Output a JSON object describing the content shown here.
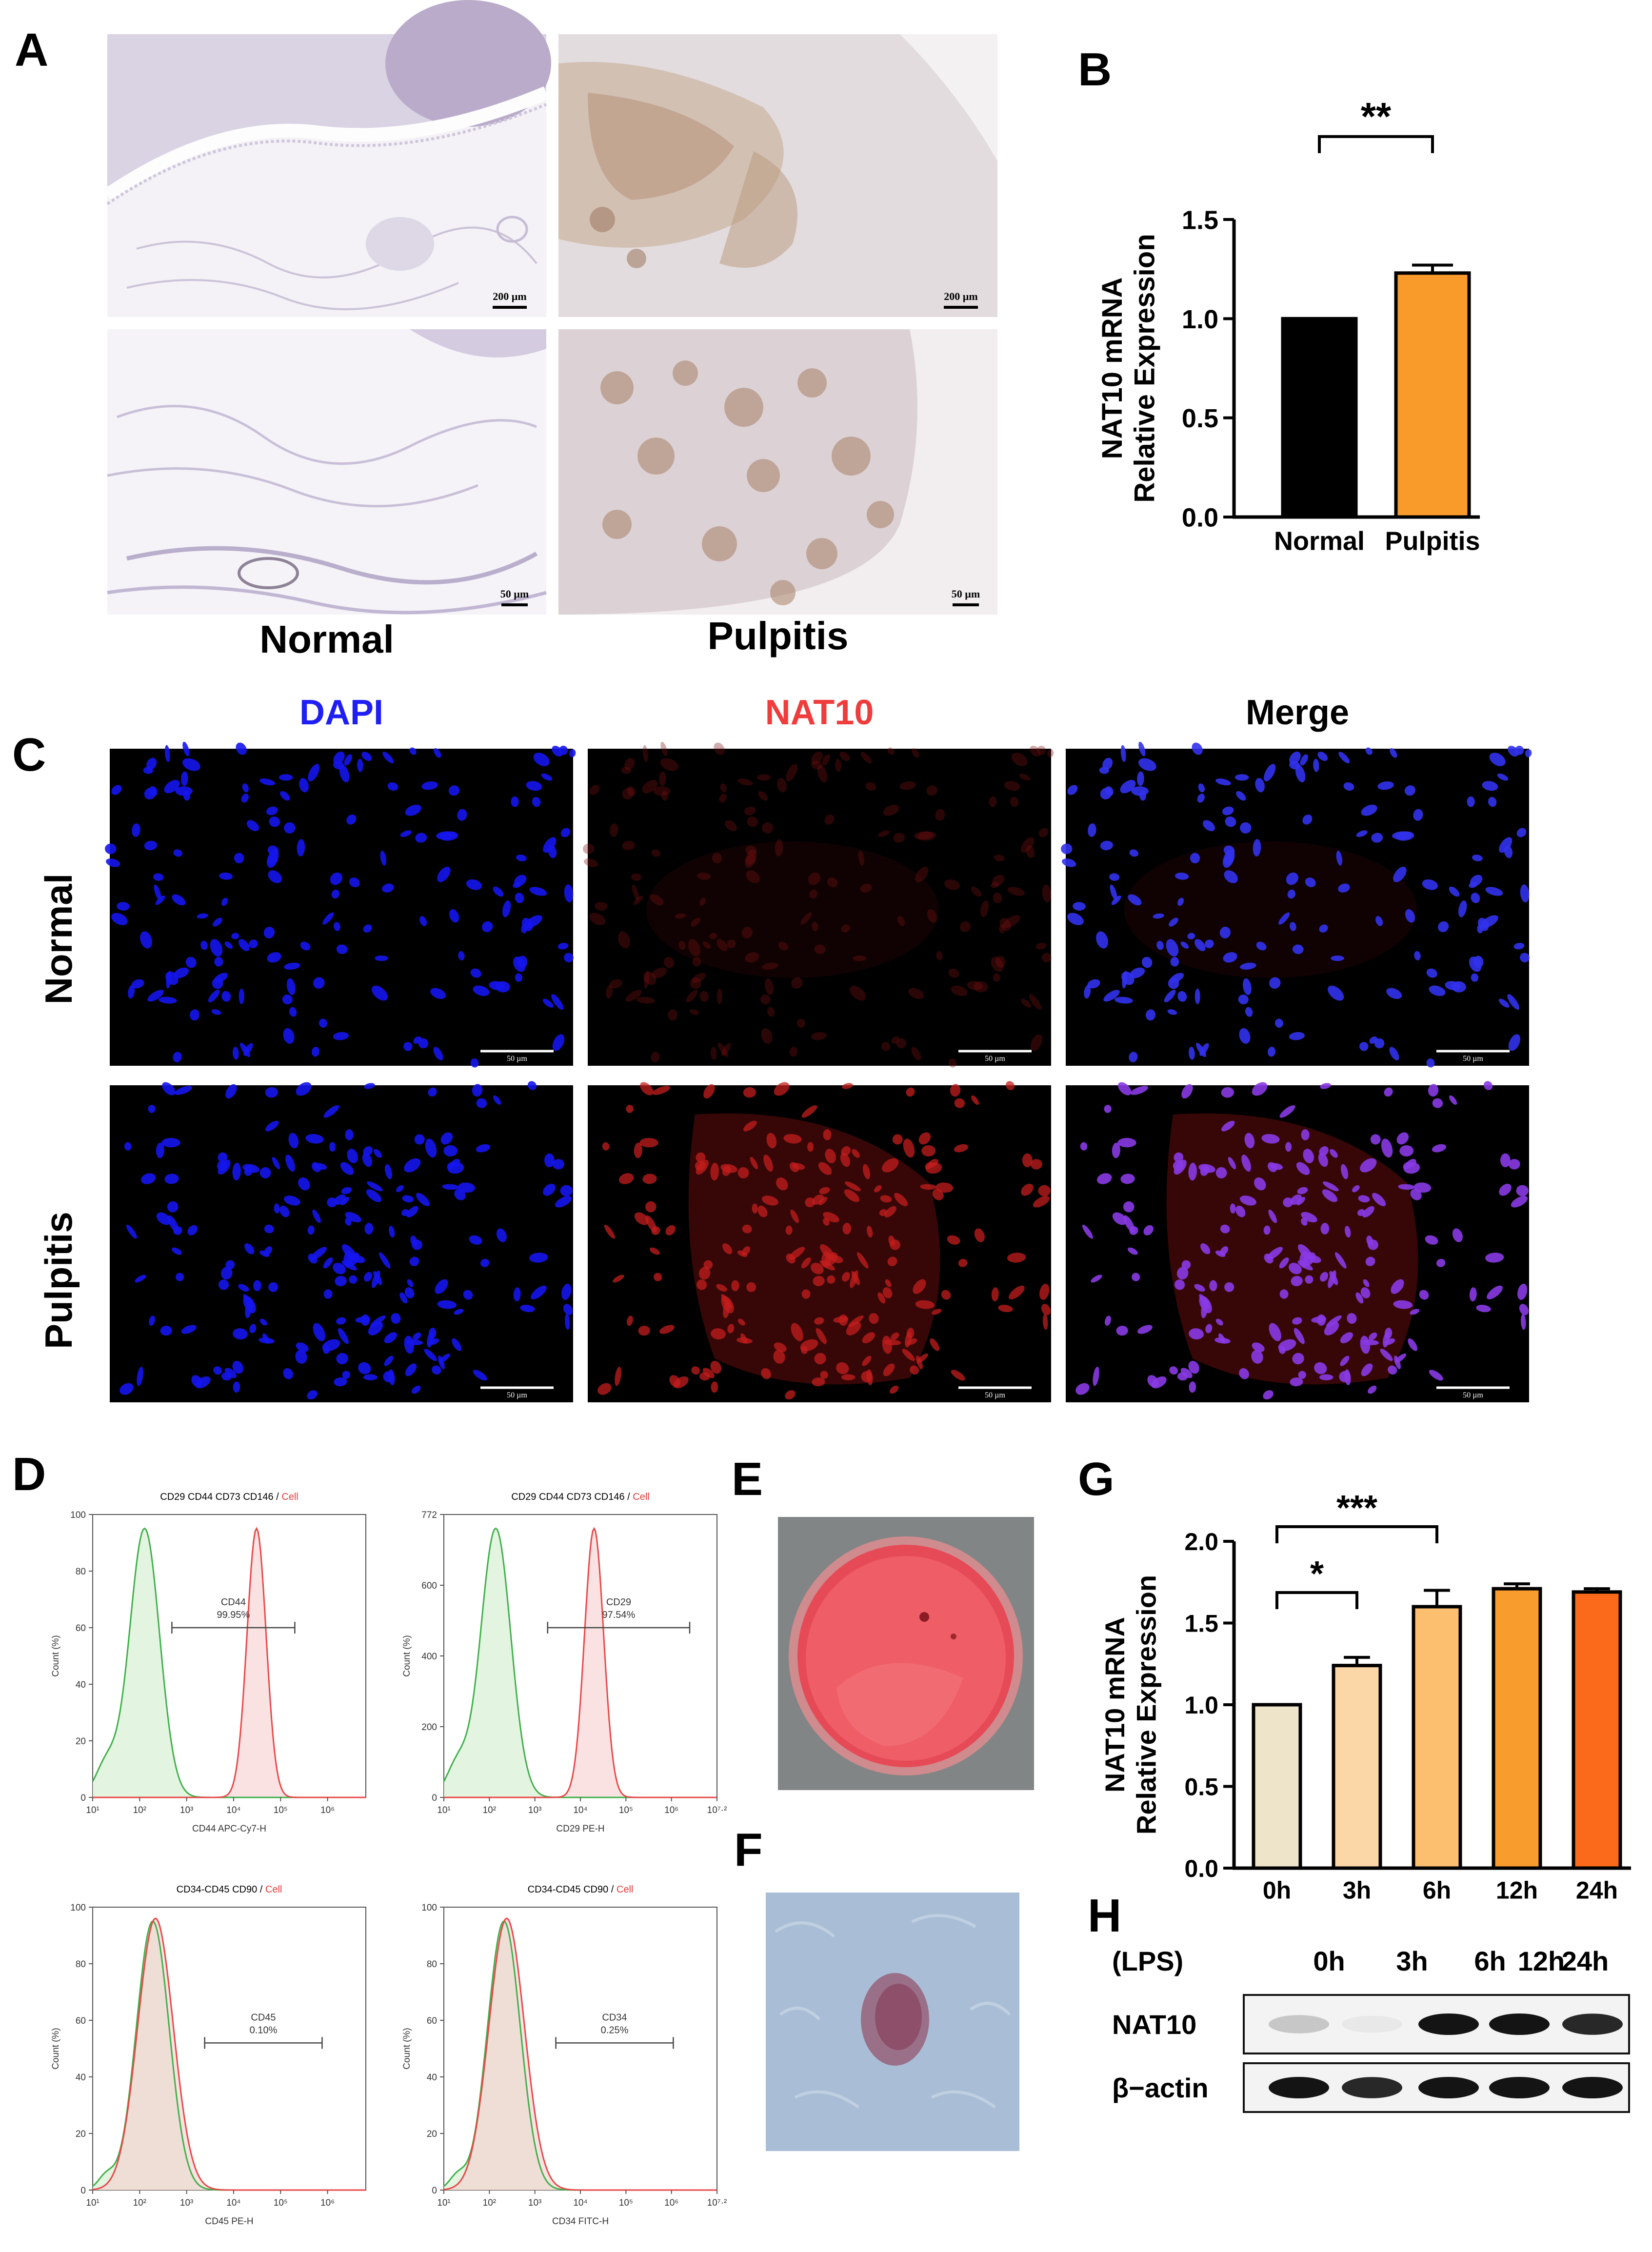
{
  "panels": {
    "A": {
      "label": "A",
      "scale_bars": [
        "200 µm",
        "200 µm",
        "50 µm",
        "50 µm"
      ],
      "captions": [
        "Normal",
        "Pulpitis"
      ]
    },
    "B": {
      "label": "B",
      "significance": "**"
    },
    "C": {
      "label": "C",
      "columns": [
        "DAPI",
        "NAT10",
        "Merge"
      ],
      "rows": [
        "Normal",
        "Pulpitis"
      ],
      "scale_bar": "50 µm"
    },
    "D": {
      "label": "D",
      "plots": [
        {
          "title_main": "CD29 CD44 CD73 CD146 / ",
          "title_red": "Cell",
          "gate_name": "CD44",
          "gate_pct": "99.95%",
          "xlabel": "CD44 APC-Cy7-H",
          "ylabel": "Count (%)",
          "yticks": [
            "0",
            "20",
            "40",
            "60",
            "80",
            "100"
          ],
          "xticks": [
            "10¹",
            "10²",
            "10³",
            "10⁴",
            "10⁵",
            "10⁶"
          ],
          "xmax_tick": ""
        },
        {
          "title_main": "CD29 CD44 CD73 CD146 / ",
          "title_red": "Cell",
          "gate_name": "CD29",
          "gate_pct": "97.54%",
          "xlabel": "CD29 PE-H",
          "ylabel": "Count (%)",
          "yticks": [
            "0",
            "200",
            "400",
            "600",
            "772"
          ],
          "xticks": [
            "10¹",
            "10²",
            "10³",
            "10⁴",
            "10⁵",
            "10⁶",
            "10⁷·²"
          ],
          "xmax_tick": ""
        },
        {
          "title_main": "CD34-CD45 CD90 / ",
          "title_red": "Cell",
          "gate_name": "CD45",
          "gate_pct": "0.10%",
          "xlabel": "CD45 PE-H",
          "ylabel": "Count (%)",
          "yticks": [
            "0",
            "20",
            "40",
            "60",
            "80",
            "100"
          ],
          "xticks": [
            "10¹",
            "10²",
            "10³",
            "10⁴",
            "10⁵",
            "10⁶"
          ],
          "xmax_tick": ""
        },
        {
          "title_main": "CD34-CD45 CD90 / ",
          "title_red": "Cell",
          "gate_name": "CD34",
          "gate_pct": "0.25%",
          "xlabel": "CD34 FITC-H",
          "ylabel": "Count (%)",
          "yticks": [
            "0",
            "20",
            "40",
            "60",
            "80",
            "100"
          ],
          "xticks": [
            "10¹",
            "10²",
            "10³",
            "10⁴",
            "10⁵",
            "10⁶",
            "10⁷·²"
          ],
          "xmax_tick": ""
        }
      ]
    },
    "E": {
      "label": "E"
    },
    "F": {
      "label": "F"
    },
    "G": {
      "label": "G",
      "significance": [
        {
          "text": "*",
          "from": "0h",
          "to": "3h"
        },
        {
          "text": "***",
          "from": "0h",
          "to": "6h"
        }
      ]
    },
    "H": {
      "label": "H",
      "treatment": "(LPS)",
      "lanes": [
        "0h",
        "3h",
        "6h",
        "12h",
        "24h"
      ],
      "rows": [
        "NAT10",
        "β−actin"
      ],
      "nat10_intensity": [
        0.35,
        0.1,
        1.0,
        1.0,
        0.95
      ],
      "actin_intensity": [
        1.0,
        0.95,
        1.0,
        1.0,
        1.0
      ]
    }
  },
  "chart_data": [
    {
      "panel": "B",
      "type": "bar",
      "categories": [
        "Normal",
        "Pulpitis"
      ],
      "values": [
        1.0,
        1.23
      ],
      "errors": [
        0,
        0.04
      ],
      "colors": [
        "#000000",
        "#f99b2b"
      ],
      "title": "",
      "xlabel": "",
      "ylabel": "NAT10 mRNA Relative Expression",
      "ylabel_lines": [
        "NAT10 mRNA",
        "Relative Expression"
      ],
      "ylim": [
        0,
        1.5
      ],
      "yticks": [
        0.0,
        0.5,
        1.0,
        1.5
      ],
      "ytick_labels": [
        "0.0",
        "0.5",
        "1.0",
        "1.5"
      ],
      "grid": false
    },
    {
      "panel": "G",
      "type": "bar",
      "categories": [
        "0h",
        "3h",
        "6h",
        "12h",
        "24h"
      ],
      "values": [
        1.0,
        1.24,
        1.6,
        1.71,
        1.69
      ],
      "errors": [
        0,
        0.05,
        0.1,
        0.03,
        0.02
      ],
      "colors": [
        "#ede4c9",
        "#fbd6a7",
        "#fbbf6f",
        "#f99c2e",
        "#fa6a1a"
      ],
      "title": "",
      "xlabel": "",
      "ylabel": "NAT10 mRNA Relative Expression",
      "ylabel_lines": [
        "NAT10 mRNA",
        "Relative Expression"
      ],
      "ylim": [
        0,
        2.0
      ],
      "yticks": [
        0.0,
        0.5,
        1.0,
        1.5,
        2.0
      ],
      "ytick_labels": [
        "0.0",
        "0.5",
        "1.0",
        "1.5",
        "2.0"
      ],
      "grid": false
    }
  ]
}
